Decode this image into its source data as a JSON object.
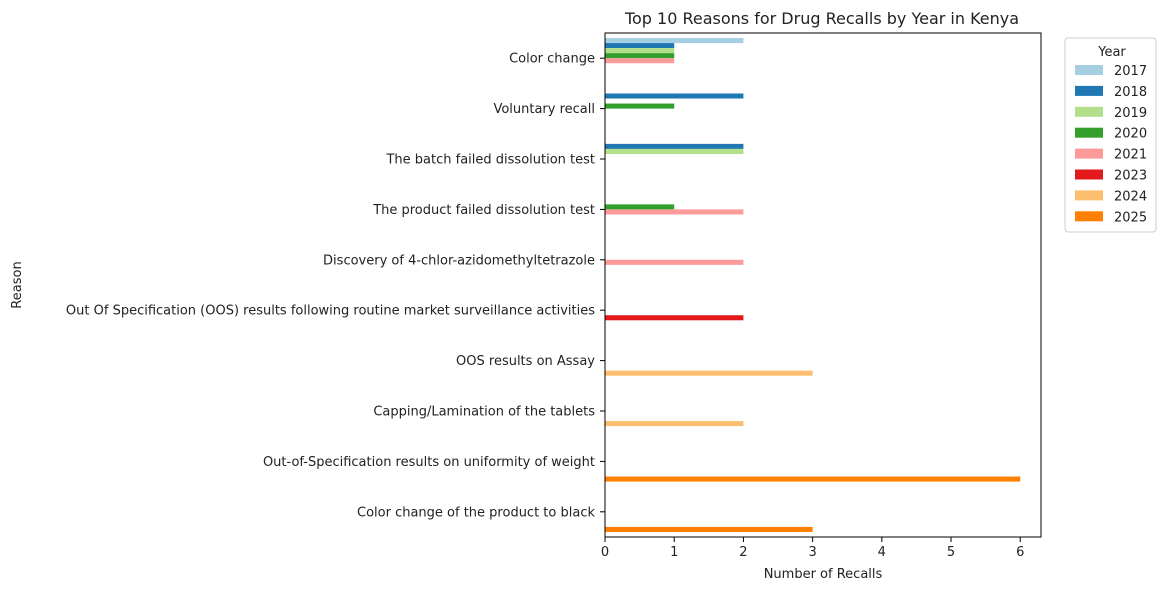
{
  "chart_data": {
    "type": "bar",
    "orientation": "horizontal",
    "title": "Top 10 Reasons for Drug Recalls by Year in Kenya",
    "xlabel": "Number of Recalls",
    "ylabel": "Reason",
    "xlim": [
      0,
      6.3
    ],
    "xticks": [
      "0",
      "1",
      "2",
      "3",
      "4",
      "5",
      "6"
    ],
    "grid": false,
    "legend": {
      "title": "Year",
      "placement": "outside-top-right"
    },
    "categories": [
      "Color change",
      "Voluntary recall",
      "The batch failed dissolution test",
      "The product failed dissolution test",
      "Discovery of 4-chlor-azidomethyltetrazole",
      "Out Of Specification (OOS) results following routine market surveillance activities",
      "OOS results on Assay",
      "Capping/Lamination of the tablets",
      "Out-of-Specification results on uniformity of weight",
      "Color change of the product to black"
    ],
    "series": [
      {
        "name": "2017",
        "color": "#a6cee3",
        "values": [
          2,
          null,
          null,
          null,
          null,
          null,
          null,
          null,
          null,
          null
        ]
      },
      {
        "name": "2018",
        "color": "#1f78b4",
        "values": [
          1,
          2,
          2,
          null,
          null,
          null,
          null,
          null,
          null,
          null
        ]
      },
      {
        "name": "2019",
        "color": "#b2df8a",
        "values": [
          1,
          null,
          2,
          null,
          null,
          null,
          null,
          null,
          null,
          null
        ]
      },
      {
        "name": "2020",
        "color": "#33a02c",
        "values": [
          1,
          1,
          null,
          1,
          null,
          null,
          null,
          null,
          null,
          null
        ]
      },
      {
        "name": "2021",
        "color": "#fb9a99",
        "values": [
          1,
          null,
          null,
          2,
          2,
          null,
          null,
          null,
          null,
          null
        ]
      },
      {
        "name": "2023",
        "color": "#e31a1c",
        "values": [
          null,
          null,
          null,
          null,
          null,
          2,
          null,
          null,
          null,
          null
        ]
      },
      {
        "name": "2024",
        "color": "#fdbf6f",
        "values": [
          null,
          null,
          null,
          null,
          null,
          null,
          3,
          2,
          null,
          null
        ]
      },
      {
        "name": "2025",
        "color": "#ff7f00",
        "values": [
          null,
          null,
          null,
          null,
          null,
          null,
          null,
          null,
          6,
          3
        ]
      }
    ]
  }
}
